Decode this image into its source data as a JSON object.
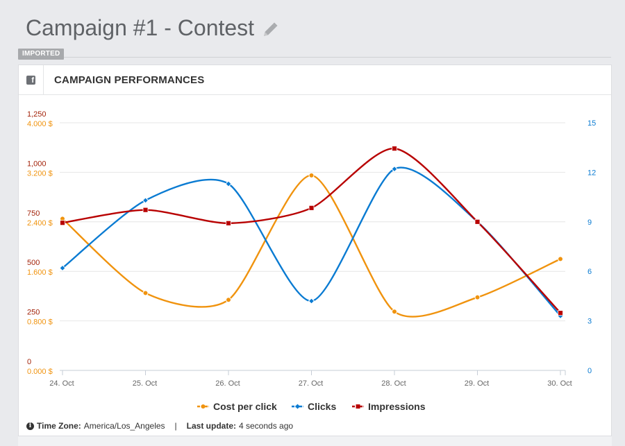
{
  "page": {
    "title": "Campaign #1 - Contest",
    "badge": "IMPORTED"
  },
  "panel": {
    "title": "CAMPAIGN PERFORMANCES",
    "icon": "facebook-icon"
  },
  "footer": {
    "timezone_label": "Time Zone:",
    "timezone_value": "America/Los_Angeles",
    "separator": "|",
    "update_label": "Last update:",
    "update_value": "4 seconds ago"
  },
  "chart_data": {
    "type": "line",
    "categories": [
      "24. Oct",
      "25. Oct",
      "26. Oct",
      "27. Oct",
      "28. Oct",
      "29. Oct",
      "30. Oct"
    ],
    "series": [
      {
        "name": "Cost per click",
        "axis": "cost",
        "color": "#f0930e",
        "marker": "circle",
        "values": [
          2.45,
          1.25,
          1.14,
          3.15,
          0.95,
          1.18,
          1.8
        ]
      },
      {
        "name": "Clicks",
        "axis": "clicks",
        "color": "#0a7bd2",
        "marker": "diamond",
        "values": [
          6.2,
          10.3,
          11.3,
          4.2,
          12.2,
          9.0,
          3.3
        ]
      },
      {
        "name": "Impressions",
        "axis": "impressions",
        "color": "#b80000",
        "marker": "square",
        "values": [
          745,
          810,
          743,
          820,
          1120,
          750,
          290
        ]
      }
    ],
    "axes": {
      "impressions": {
        "min": 0,
        "max": 1250,
        "ticks": [
          "0",
          "250",
          "500",
          "750",
          "1,000",
          "1,250"
        ],
        "color": "#a3230a",
        "side": "left"
      },
      "cost": {
        "min": 0,
        "max": 4,
        "ticks": [
          "0.000 $",
          "0.800 $",
          "1.600 $",
          "2.400 $",
          "3.200 $",
          "4.000 $"
        ],
        "color": "#f0930e",
        "side": "left"
      },
      "clicks": {
        "min": 0,
        "max": 15,
        "ticks": [
          "0",
          "3",
          "6",
          "9",
          "12",
          "15"
        ],
        "color": "#0a7bd2",
        "side": "right"
      }
    },
    "grid": true,
    "legend": "bottom-center"
  }
}
